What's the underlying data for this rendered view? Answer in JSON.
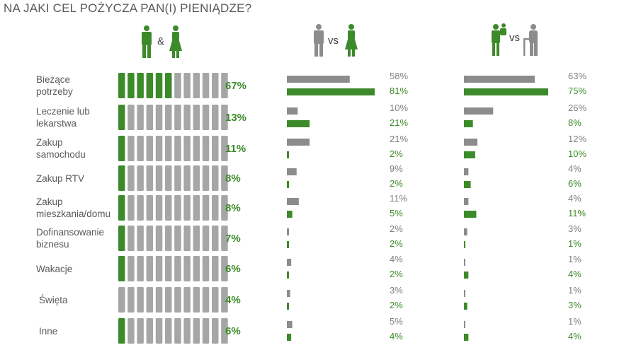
{
  "title": "NA JAKI CEL POŻYCZA PAN(I) PIENIĄDZE?",
  "colors": {
    "accent": "#3d8a2a",
    "grey": "#8c8c8c",
    "text": "#595959"
  },
  "headers": {
    "total_icon": "man-and-woman-icon",
    "total_symbol": "&",
    "gender_icon": "man-vs-woman-icon",
    "gender_symbol": "vs",
    "age_icon": "young-vs-old-icon",
    "age_symbol": "vs"
  },
  "chart_data": [
    {
      "type": "bar",
      "panel": "total",
      "categories": [
        [
          "Bieżące",
          "potrzeby"
        ],
        [
          "Leczenie lub",
          "lekarstwa"
        ],
        [
          "Zakup",
          "samochodu"
        ],
        [
          "Zakup RTV"
        ],
        [
          "Zakup",
          "mieszkania/domu"
        ],
        [
          "Dofinansowanie",
          "biznesu"
        ],
        [
          "Wakacje"
        ],
        [
          "Święta"
        ],
        [
          "Inne"
        ]
      ],
      "values": [
        67,
        13,
        11,
        8,
        8,
        7,
        6,
        4,
        6
      ],
      "value_labels": [
        "67%",
        "13%",
        "11%",
        "8%",
        "8%",
        "7%",
        "6%",
        "4%",
        "6%"
      ],
      "filled_segments": [
        6,
        1,
        1,
        1,
        1,
        1,
        1,
        0,
        1
      ],
      "total_segments": 12
    },
    {
      "type": "bar",
      "panel": "gender",
      "series": [
        {
          "key": "men",
          "color": "#8c8c8c",
          "values": [
            58,
            10,
            21,
            9,
            11,
            2,
            4,
            3,
            5
          ],
          "labels": [
            "58%",
            "10%",
            "21%",
            "9%",
            "11%",
            "2%",
            "4%",
            "3%",
            "5%"
          ]
        },
        {
          "key": "women",
          "color": "#3d8a2a",
          "values": [
            81,
            21,
            2,
            2,
            5,
            2,
            2,
            2,
            4
          ],
          "labels": [
            "81%",
            "21%",
            "2%",
            "2%",
            "5%",
            "2%",
            "2%",
            "2%",
            "4%"
          ]
        }
      ]
    },
    {
      "type": "bar",
      "panel": "age",
      "series": [
        {
          "key": "older",
          "color": "#8c8c8c",
          "values": [
            63,
            26,
            12,
            4,
            4,
            3,
            1,
            1,
            1
          ],
          "labels": [
            "63%",
            "26%",
            "12%",
            "4%",
            "4%",
            "3%",
            "1%",
            "1%",
            "1%"
          ]
        },
        {
          "key": "younger",
          "color": "#3d8a2a",
          "values": [
            75,
            8,
            10,
            6,
            11,
            1,
            4,
            3,
            4
          ],
          "labels": [
            "75%",
            "8%",
            "10%",
            "6%",
            "11%",
            "1%",
            "4%",
            "3%",
            "4%"
          ]
        }
      ]
    }
  ]
}
